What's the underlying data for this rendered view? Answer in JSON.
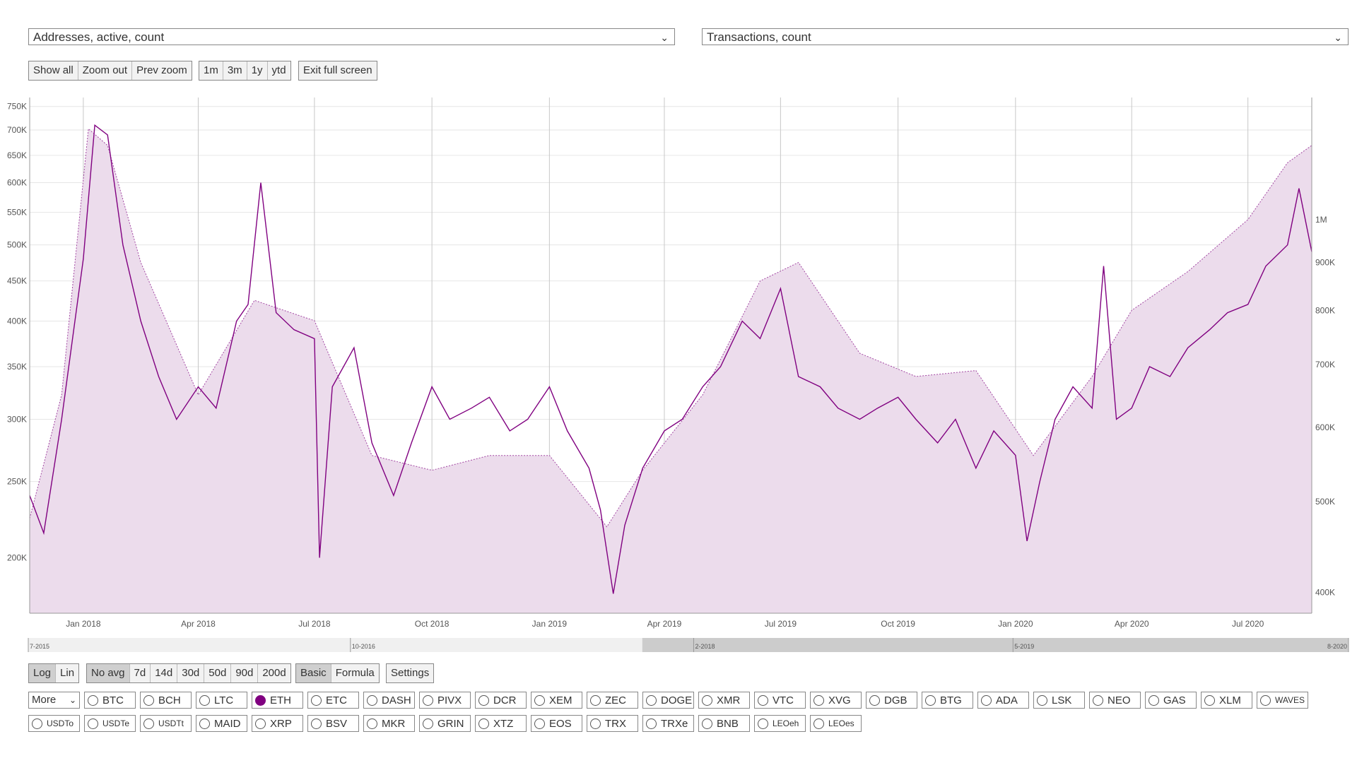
{
  "selectors": {
    "left_metric": "Addresses, active, count",
    "right_metric": "Transactions, count"
  },
  "toolbar": {
    "zoom_buttons": [
      "Show all",
      "Zoom out",
      "Prev zoom"
    ],
    "range_buttons": [
      "1m",
      "3m",
      "1y",
      "ytd"
    ],
    "fullscreen_label": "Exit full screen"
  },
  "bottom_controls": {
    "scale_buttons": [
      "Log",
      "Lin"
    ],
    "scale_active": "Log",
    "avg_buttons": [
      "No avg",
      "7d",
      "14d",
      "30d",
      "50d",
      "90d",
      "200d"
    ],
    "avg_active": "No avg",
    "mode_buttons": [
      "Basic",
      "Formula"
    ],
    "mode_active": "Basic",
    "settings_label": "Settings"
  },
  "navigator": {
    "labels": [
      "7-2015",
      "10-2016",
      "2-2018",
      "5-2019",
      "8-2020"
    ]
  },
  "coins": {
    "more_label": "More",
    "row1": [
      "BTC",
      "BCH",
      "LTC",
      "ETH",
      "ETC",
      "DASH",
      "PIVX",
      "DCR",
      "XEM",
      "ZEC",
      "DOGE",
      "XMR",
      "VTC",
      "XVG",
      "DGB",
      "BTG",
      "ADA",
      "LSK",
      "NEO",
      "GAS",
      "XLM",
      "WAVES"
    ],
    "row2": [
      "USDTo",
      "USDTe",
      "USDTt",
      "MAID",
      "XRP",
      "BSV",
      "MKR",
      "GRIN",
      "XTZ",
      "EOS",
      "TRX",
      "TRXe",
      "BNB",
      "LEOeh",
      "LEOes"
    ],
    "selected": "ETH"
  },
  "colors": {
    "series": "#800080",
    "area_fill": "#ecdcec",
    "grid": "#e6e6e6"
  },
  "chart_data": {
    "type": "line",
    "scale": "log",
    "x_range": [
      "2017-11-20",
      "2020-08-20"
    ],
    "x_ticks": [
      "Jan 2018",
      "Apr 2018",
      "Jul 2018",
      "Oct 2018",
      "Jan 2019",
      "Apr 2019",
      "Jul 2019",
      "Oct 2019",
      "Jan 2020",
      "Apr 2020",
      "Jul 2020"
    ],
    "y_left": {
      "label": "",
      "ticks": [
        "200K",
        "250K",
        "300K",
        "350K",
        "400K",
        "450K",
        "500K",
        "550K",
        "600K",
        "650K",
        "700K",
        "750K"
      ],
      "range": [
        170000,
        770000
      ]
    },
    "y_right": {
      "label": "",
      "ticks": [
        "400K",
        "500K",
        "600K",
        "700K",
        "800K",
        "900K",
        "1M"
      ],
      "range": [
        380000,
        1350000
      ]
    },
    "series": [
      {
        "name": "",
        "axis": "left",
        "style": "solid",
        "x": [
          "2017-11-20",
          "2017-12-01",
          "2017-12-15",
          "2018-01-01",
          "2018-01-10",
          "2018-01-20",
          "2018-02-01",
          "2018-02-15",
          "2018-03-01",
          "2018-03-15",
          "2018-04-01",
          "2018-04-15",
          "2018-05-01",
          "2018-05-10",
          "2018-05-20",
          "2018-06-01",
          "2018-06-15",
          "2018-07-01",
          "2018-07-05",
          "2018-07-15",
          "2018-08-01",
          "2018-08-15",
          "2018-09-01",
          "2018-09-15",
          "2018-10-01",
          "2018-10-15",
          "2018-11-01",
          "2018-11-15",
          "2018-12-01",
          "2018-12-15",
          "2019-01-01",
          "2019-01-15",
          "2019-02-01",
          "2019-02-10",
          "2019-02-20",
          "2019-03-01",
          "2019-03-15",
          "2019-04-01",
          "2019-04-15",
          "2019-05-01",
          "2019-05-15",
          "2019-06-01",
          "2019-06-15",
          "2019-07-01",
          "2019-07-15",
          "2019-08-01",
          "2019-08-15",
          "2019-09-01",
          "2019-09-15",
          "2019-10-01",
          "2019-10-15",
          "2019-11-01",
          "2019-11-15",
          "2019-12-01",
          "2019-12-15",
          "2020-01-01",
          "2020-01-10",
          "2020-01-20",
          "2020-02-01",
          "2020-02-15",
          "2020-03-01",
          "2020-03-10",
          "2020-03-20",
          "2020-04-01",
          "2020-04-15",
          "2020-05-01",
          "2020-05-15",
          "2020-06-01",
          "2020-06-15",
          "2020-07-01",
          "2020-07-15",
          "2020-08-01",
          "2020-08-10",
          "2020-08-20"
        ],
        "y": [
          240000,
          215000,
          300000,
          480000,
          710000,
          690000,
          500000,
          400000,
          340000,
          300000,
          330000,
          310000,
          400000,
          420000,
          600000,
          410000,
          390000,
          380000,
          200000,
          330000,
          370000,
          280000,
          240000,
          280000,
          330000,
          300000,
          310000,
          320000,
          290000,
          300000,
          330000,
          290000,
          260000,
          230000,
          180000,
          220000,
          260000,
          290000,
          300000,
          330000,
          350000,
          400000,
          380000,
          440000,
          340000,
          330000,
          310000,
          300000,
          310000,
          320000,
          300000,
          280000,
          300000,
          260000,
          290000,
          270000,
          210000,
          250000,
          300000,
          330000,
          310000,
          470000,
          300000,
          310000,
          350000,
          340000,
          370000,
          390000,
          410000,
          420000,
          470000,
          500000,
          590000,
          490000
        ]
      },
      {
        "name": "",
        "axis": "right",
        "style": "dotted",
        "x": [
          "2017-11-20",
          "2017-12-15",
          "2018-01-05",
          "2018-01-20",
          "2018-02-15",
          "2018-04-01",
          "2018-05-15",
          "2018-07-01",
          "2018-08-15",
          "2018-10-01",
          "2018-11-15",
          "2019-01-01",
          "2019-02-15",
          "2019-03-15",
          "2019-05-01",
          "2019-06-15",
          "2019-07-15",
          "2019-09-01",
          "2019-10-15",
          "2019-12-01",
          "2020-01-15",
          "2020-03-01",
          "2020-04-01",
          "2020-05-15",
          "2020-07-01",
          "2020-08-01",
          "2020-08-20"
        ],
        "y": [
          480000,
          650000,
          1250000,
          1200000,
          900000,
          650000,
          820000,
          780000,
          560000,
          540000,
          560000,
          560000,
          470000,
          540000,
          650000,
          860000,
          900000,
          720000,
          680000,
          690000,
          560000,
          680000,
          800000,
          880000,
          1000000,
          1150000,
          1200000
        ]
      }
    ]
  }
}
